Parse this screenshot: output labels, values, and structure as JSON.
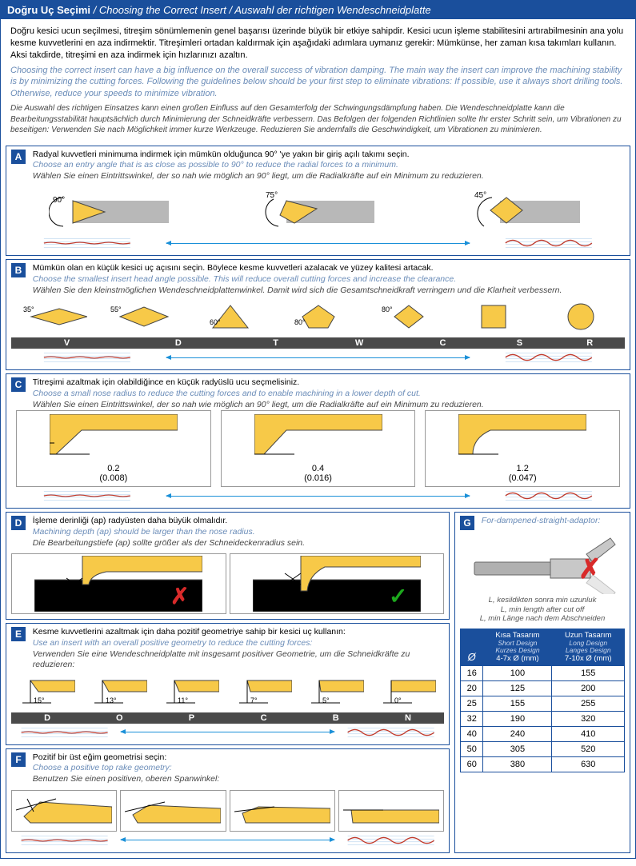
{
  "colors": {
    "brand_blue": "#1a4f9c",
    "light_blue": "#6a8cb8",
    "cyan_arrow": "#1a90d8",
    "insert_yellow": "#f7c948",
    "tool_gray": "#b8b8b8",
    "dark_bar": "#4a4a4a",
    "vibration_red": "#c0392b",
    "grid_blue": "#9bc2e6",
    "ok_green": "#1da81d",
    "bad_red": "#d82a2a"
  },
  "header": {
    "tr": "Doğru Uç Seçimi",
    "en": "Choosing the Correct Insert",
    "de": "Auswahl der richtigen Wendeschneidplatte"
  },
  "intro": {
    "tr": "Doğru kesici ucun seçilmesi, titreşim sönümlemenin genel başarısı üzerinde büyük bir etkiye sahipdir. Kesici ucun işleme stabilitesini artırabilmesinin ana yolu kesme kuvvetlerini en aza indirmektir. Titreşimleri ortadan kaldırmak için aşağıdaki adımlara uymanız gerekir: Mümkünse, her zaman kısa takımları kullanın. Aksi takdirde, titreşimi en aza indirmek için hızlarınızı azaltın.",
    "en": "Choosing the correct insert can have a big influence on the overall success of vibration damping. The main way the insert can improve the machining stability is by minimizing the cutting forces. Following the guidelines below should be your first step to eliminate vibrations: If possible, use it always short drilling tools. Otherwise, reduce your speeds to minimize vibration.",
    "de": "Die Auswahl des richtigen Einsatzes kann einen großen Einfluss auf den Gesamterfolg der Schwingungsdämpfung haben. Die Wendeschneidplatte kann die Bearbeitungsstabilität hauptsächlich durch Minimierung der Schneidkräfte verbessern. Das Befolgen der folgenden Richtlinien sollte Ihr erster Schritt sein, um Vibrationen zu beseitigen: Verwenden Sie nach Möglichkeit immer kurze Werkzeuge. Reduzieren Sie andernfalls die Geschwindigkeit, um Vibrationen zu minimieren."
  },
  "sections": {
    "A": {
      "tr": "Radyal kuvvetleri minimuma indirmek için mümkün olduğunca 90° 'ye yakın bir giriş açılı takımı seçin.",
      "en": "Choose an entry angle that is as close as possible to 90° to reduce the radial forces to a minimum.",
      "de": "Wählen Sie einen Eintrittswinkel, der so nah wie möglich an 90° liegt, um die Radialkräfte auf ein Minimum zu reduzieren.",
      "angles": [
        "90°",
        "75°",
        "45°"
      ]
    },
    "B": {
      "tr": "Mümkün olan en küçük kesici uç açısını seçin. Böylece kesme kuvvetleri azalacak ve yüzey kalitesi artacak.",
      "en": "Choose the smallest insert head angle possible. This will reduce overall cutting forces and increase the clearance.",
      "de": "Wählen Sie den kleinstmöglichen Wendeschneidplattenwinkel. Damit wird sich die Gesamtschneidkraft verringern und die Klarheit verbessern.",
      "shapes": [
        {
          "label": "V",
          "angle": "35°"
        },
        {
          "label": "D",
          "angle": "55°"
        },
        {
          "label": "T",
          "angle": "60°"
        },
        {
          "label": "W",
          "angle": "80°"
        },
        {
          "label": "C",
          "angle": "80°"
        },
        {
          "label": "S",
          "angle": ""
        },
        {
          "label": "R",
          "angle": ""
        }
      ]
    },
    "C": {
      "tr": "Titreşimi azaltmak için olabildiğince en küçük radyüslü ucu seçmelisiniz.",
      "en": "Choose a small nose radius to reduce the cutting forces and to enable machining in a lower depth of cut.",
      "de": "Wählen Sie einen Eintrittswinkel, der so nah wie möglich an 90° liegt, um die Radialkräfte auf ein Minimum zu reduzieren.",
      "radii": [
        {
          "mm": "0.2",
          "in": "(0.008)"
        },
        {
          "mm": "0.4",
          "in": "(0.016)"
        },
        {
          "mm": "1.2",
          "in": "(0.047)"
        }
      ]
    },
    "D": {
      "tr": "İşleme derinliği (ap) radyüsten daha büyük olmalıdır.",
      "en": "Machining depth (ap) should be larger than the nose radius.",
      "de": "Die Bearbeitungstiefe (ap) sollte größer als der Schneideckenradius sein."
    },
    "E": {
      "tr": "Kesme kuvvetlerini azaltmak için daha pozitif geometriye sahip bir kesici uç kullanın:",
      "en": "Use an insert with an overall positive geometry to reduce the cutting forces:",
      "de": "Verwenden Sie eine Wendeschneidplatte mit insgesamt positiver Geometrie, um die Schneidkräfte zu reduzieren:",
      "geoms": [
        {
          "angle": "15°",
          "label": "D"
        },
        {
          "angle": "13°",
          "label": "O"
        },
        {
          "angle": "11°",
          "label": "P"
        },
        {
          "angle": "7°",
          "label": "C"
        },
        {
          "angle": "5°",
          "label": "B"
        },
        {
          "angle": "0°",
          "label": "N"
        }
      ]
    },
    "F": {
      "tr": "Pozitif bir üst eğim geometrisi seçin:",
      "en": "Choose a positive top rake geometry:",
      "de": "Benutzen Sie einen positiven, oberen Spanwinkel:"
    },
    "G": {
      "title": "For-dampened-straight-adaptor:",
      "caption": {
        "tr": "L, kesildikten sonra min uzunluk",
        "en": "L, min length after cut off",
        "de": "L, min Länge nach dem Abschneiden"
      },
      "col_short": {
        "tr": "Kısa Tasarım",
        "en": "Short Design",
        "de": "Kurzes Design",
        "range": "4-7x Ø (mm)"
      },
      "col_long": {
        "tr": "Uzun Tasarım",
        "en": "Long Design",
        "de": "Langes Design",
        "range": "7-10x Ø (mm)"
      },
      "diam_label": "Ø",
      "rows": [
        {
          "d": "16",
          "s": "100",
          "l": "155"
        },
        {
          "d": "20",
          "s": "125",
          "l": "200"
        },
        {
          "d": "25",
          "s": "155",
          "l": "255"
        },
        {
          "d": "32",
          "s": "190",
          "l": "320"
        },
        {
          "d": "40",
          "s": "240",
          "l": "410"
        },
        {
          "d": "50",
          "s": "305",
          "l": "520"
        },
        {
          "d": "60",
          "s": "380",
          "l": "630"
        }
      ]
    }
  }
}
